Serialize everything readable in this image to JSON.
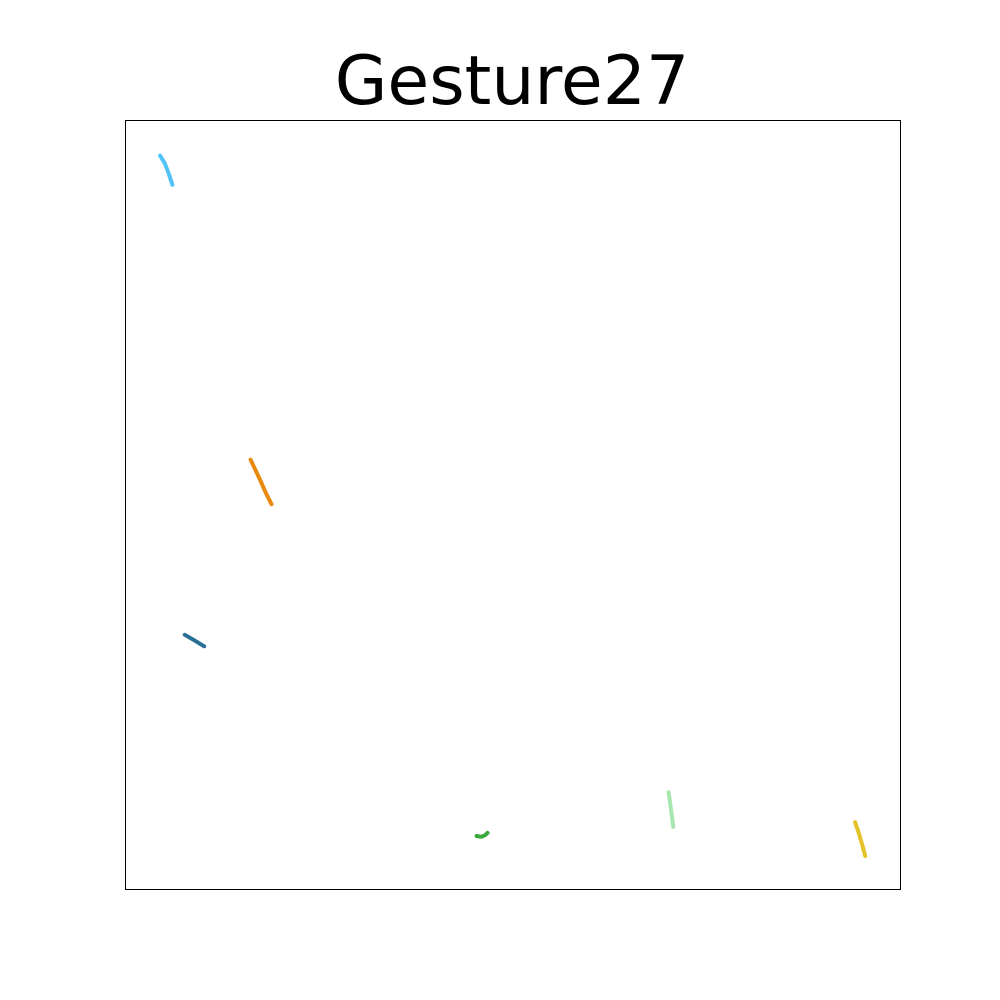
{
  "chart_data": {
    "type": "line",
    "title": "Gesture27",
    "xlabel": "",
    "ylabel": "",
    "xlim": [
      0,
      1
    ],
    "ylim": [
      0,
      1
    ],
    "grid": false,
    "axes_ticks": false,
    "series": [
      {
        "color": "#4fc3f7",
        "points": [
          [
            0.044,
            0.955
          ],
          [
            0.05,
            0.945
          ],
          [
            0.055,
            0.932
          ],
          [
            0.06,
            0.917
          ]
        ]
      },
      {
        "color": "#e8890c",
        "points": [
          [
            0.161,
            0.559
          ],
          [
            0.167,
            0.546
          ],
          [
            0.174,
            0.531
          ],
          [
            0.181,
            0.515
          ],
          [
            0.188,
            0.501
          ]
        ]
      },
      {
        "color": "#2a6f97",
        "points": [
          [
            0.076,
            0.331
          ],
          [
            0.088,
            0.324
          ],
          [
            0.101,
            0.316
          ]
        ]
      },
      {
        "color": "#3aa83a",
        "points": [
          [
            0.453,
            0.069
          ],
          [
            0.459,
            0.068
          ],
          [
            0.464,
            0.07
          ],
          [
            0.467,
            0.073
          ]
        ]
      },
      {
        "color": "#a8e6b0",
        "points": [
          [
            0.701,
            0.126
          ],
          [
            0.704,
            0.105
          ],
          [
            0.707,
            0.081
          ]
        ]
      },
      {
        "color": "#e6c229",
        "points": [
          [
            0.942,
            0.087
          ],
          [
            0.947,
            0.072
          ],
          [
            0.952,
            0.055
          ],
          [
            0.955,
            0.043
          ]
        ]
      }
    ]
  }
}
